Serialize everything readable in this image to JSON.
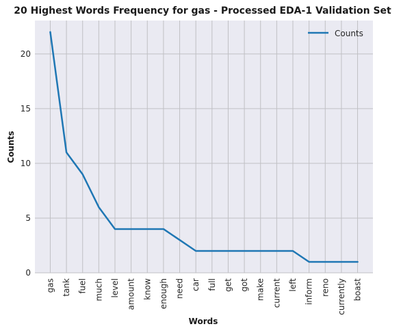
{
  "chart_data": {
    "type": "line",
    "title": "20 Highest Words Frequency for gas - Processed EDA-1 Validation Set",
    "xlabel": "Words",
    "ylabel": "Counts",
    "categories": [
      "gas",
      "tank",
      "fuel",
      "much",
      "level",
      "amount",
      "know",
      "enough",
      "need",
      "car",
      "full",
      "get",
      "got",
      "make",
      "current",
      "left",
      "inform",
      "reno",
      "currently",
      "boast"
    ],
    "series": [
      {
        "name": "Counts",
        "values": [
          22,
          11,
          9,
          6,
          4,
          4,
          4,
          4,
          3,
          2,
          2,
          2,
          2,
          2,
          2,
          2,
          1,
          1,
          1,
          1
        ],
        "color": "#1f77b4"
      }
    ],
    "ylim": [
      0,
      23.05
    ],
    "yticks": [
      0,
      5,
      10,
      15,
      20
    ],
    "grid": true,
    "legend_position": "top-right",
    "colors": {
      "plot_bg": "#eaeaf2",
      "grid": "#c0c0c4"
    }
  }
}
